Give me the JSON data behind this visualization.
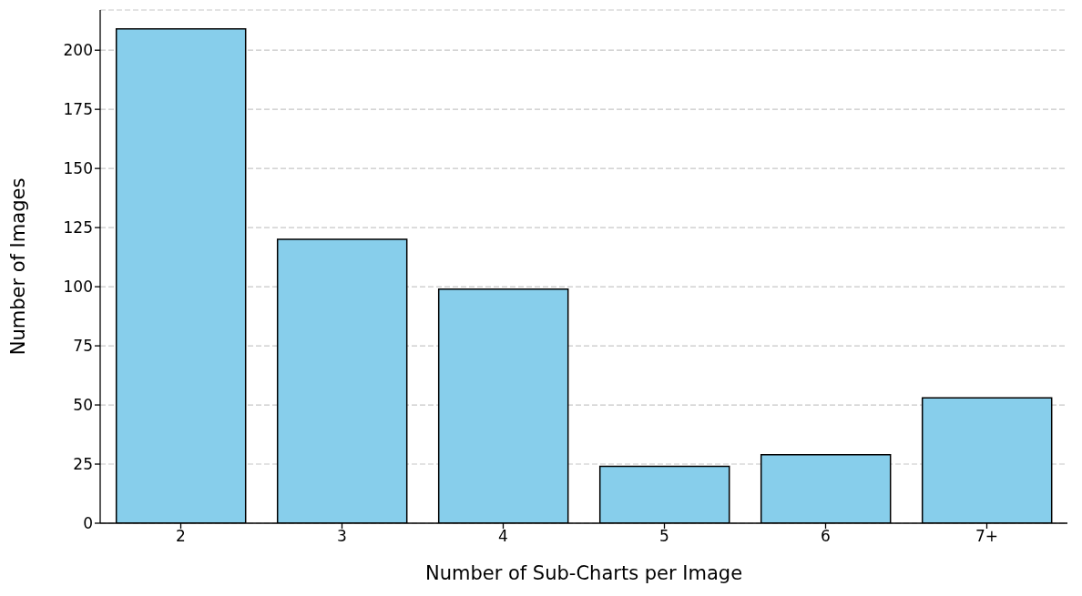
{
  "chart_data": {
    "type": "bar",
    "xlabel": "Number of Sub-Charts per Image",
    "ylabel": "Number of Images",
    "categories": [
      "2",
      "3",
      "4",
      "5",
      "6",
      "7+"
    ],
    "values": [
      209,
      120,
      99,
      24,
      29,
      53
    ],
    "color": "#87ceeb",
    "ylim": [
      0,
      217
    ],
    "yticks": [
      0,
      25,
      50,
      75,
      100,
      125,
      150,
      175,
      200
    ],
    "grid": "y"
  }
}
